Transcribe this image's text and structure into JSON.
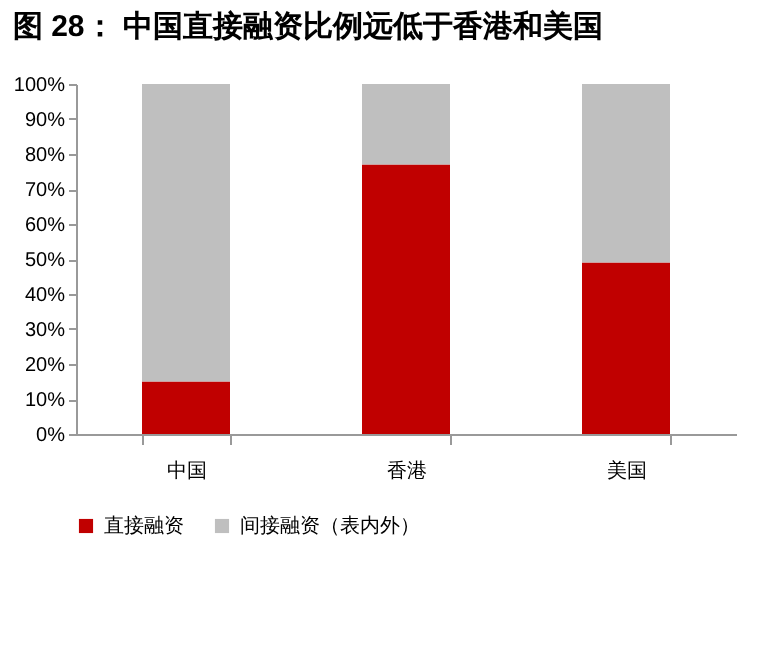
{
  "chart_data": {
    "type": "bar",
    "title": "图 28： 中国直接融资比例远低于香港和美国",
    "categories": [
      "中国",
      "香港",
      "美国"
    ],
    "series": [
      {
        "name": "直接融资",
        "color": "#c00000",
        "values": [
          15,
          77,
          49
        ]
      },
      {
        "name": "间接融资（表内外）",
        "color": "#bfbfbf",
        "values": [
          85,
          23,
          51
        ]
      }
    ],
    "stacked": true,
    "ylim": [
      0,
      100
    ],
    "yticks": [
      {
        "value": 0,
        "label": "0%"
      },
      {
        "value": 10,
        "label": "10%"
      },
      {
        "value": 20,
        "label": "20%"
      },
      {
        "value": 30,
        "label": "30%"
      },
      {
        "value": 40,
        "label": "40%"
      },
      {
        "value": 50,
        "label": "50%"
      },
      {
        "value": 60,
        "label": "60%"
      },
      {
        "value": 70,
        "label": "70%"
      },
      {
        "value": 80,
        "label": "80%"
      },
      {
        "value": 90,
        "label": "90%"
      },
      {
        "value": 100,
        "label": "100%"
      }
    ],
    "grid": false,
    "legend": "bottom"
  }
}
